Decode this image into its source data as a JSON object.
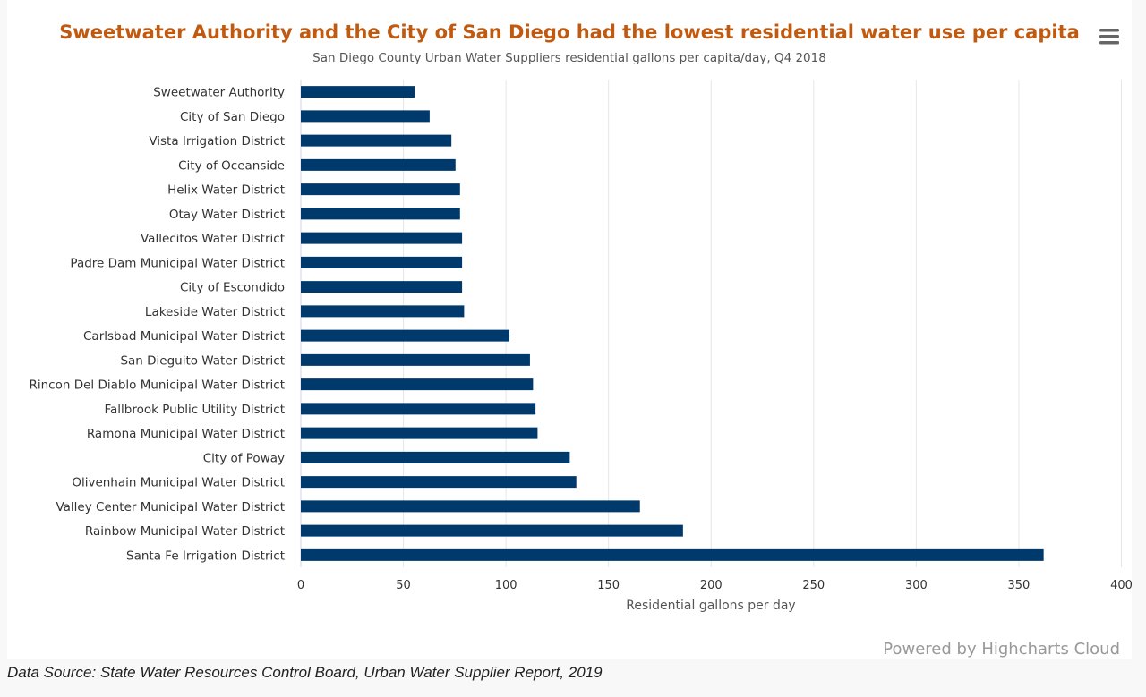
{
  "chart_data": {
    "type": "bar",
    "orientation": "horizontal",
    "title": "Sweetwater Authority and the City of San Diego had the lowest residential water use per capita",
    "subtitle": "San Diego County Urban Water Suppliers residential gallons per capita/day, Q4 2018",
    "xlabel": "Residential gallons per day",
    "ylabel": "",
    "categories": [
      "Sweetwater Authority",
      "City of San Diego",
      "Vista Irrigation District",
      "City of Oceanside",
      "Helix Water District",
      "Otay Water District",
      "Vallecitos Water District",
      "Padre Dam Municipal Water District",
      "City of Escondido",
      "Lakeside Water District",
      "Carlsbad Municipal Water District",
      "San Dieguito Water District",
      "Rincon Del Diablo Municipal Water District",
      "Fallbrook Public Utility District",
      "Ramona Municipal Water District",
      "City of Poway",
      "Olivenhain Municipal Water District",
      "Valley Center Municipal Water District",
      "Rainbow Municipal Water District",
      "Santa Fe Irrigation District"
    ],
    "values": [
      55.5,
      62.8,
      73.4,
      75.4,
      77.6,
      77.6,
      78.6,
      78.6,
      78.6,
      79.6,
      101.7,
      111.7,
      113.2,
      114.4,
      115.4,
      131.1,
      134.3,
      165.3,
      186.3,
      362.1
    ],
    "xlim": [
      0,
      400
    ],
    "ticks": [
      "0",
      "50",
      "100",
      "150",
      "200",
      "250",
      "300",
      "350",
      "400"
    ],
    "grid": true,
    "legend": "none",
    "colors": {
      "bar": "#003a6c",
      "title": "#c05a10",
      "grid": "#e6e6e6"
    }
  },
  "credits": "Powered by Highcharts Cloud",
  "source": "Data Source: State Water Resources Control Board, Urban Water Supplier Report, 2019",
  "menu_icon": "hamburger-menu-icon"
}
